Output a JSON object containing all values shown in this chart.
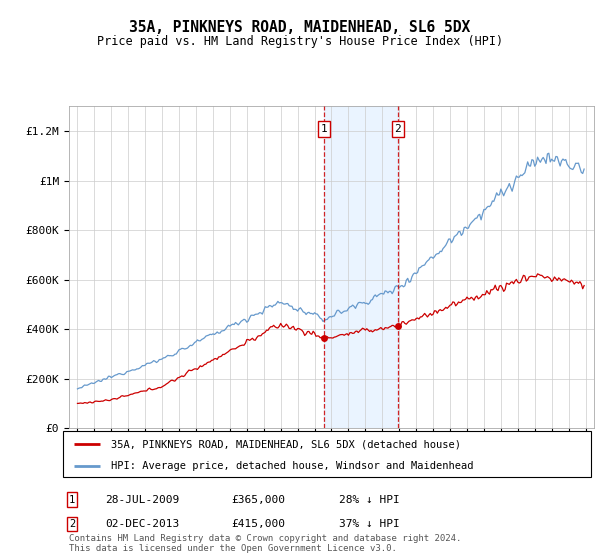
{
  "title": "35A, PINKNEYS ROAD, MAIDENHEAD, SL6 5DX",
  "subtitle": "Price paid vs. HM Land Registry's House Price Index (HPI)",
  "legend_line1": "35A, PINKNEYS ROAD, MAIDENHEAD, SL6 5DX (detached house)",
  "legend_line2": "HPI: Average price, detached house, Windsor and Maidenhead",
  "footnote": "Contains HM Land Registry data © Crown copyright and database right 2024.\nThis data is licensed under the Open Government Licence v3.0.",
  "sale1_date": "28-JUL-2009",
  "sale1_price": 365000,
  "sale1_pct": "28% ↓ HPI",
  "sale2_date": "02-DEC-2013",
  "sale2_price": 415000,
  "sale2_pct": "37% ↓ HPI",
  "red_color": "#cc0000",
  "blue_color": "#6699cc",
  "shade_color": "#ddeeff",
  "dashed_color": "#cc0000",
  "grid_color": "#cccccc",
  "ylim": [
    0,
    1300000
  ],
  "yticks": [
    0,
    200000,
    400000,
    600000,
    800000,
    1000000,
    1200000
  ],
  "ytick_labels": [
    "£0",
    "£200K",
    "£400K",
    "£600K",
    "£800K",
    "£1M",
    "£1.2M"
  ],
  "sale1_x": 2009.57,
  "sale2_x": 2013.92,
  "xlim_left": 1994.5,
  "xlim_right": 2025.5
}
